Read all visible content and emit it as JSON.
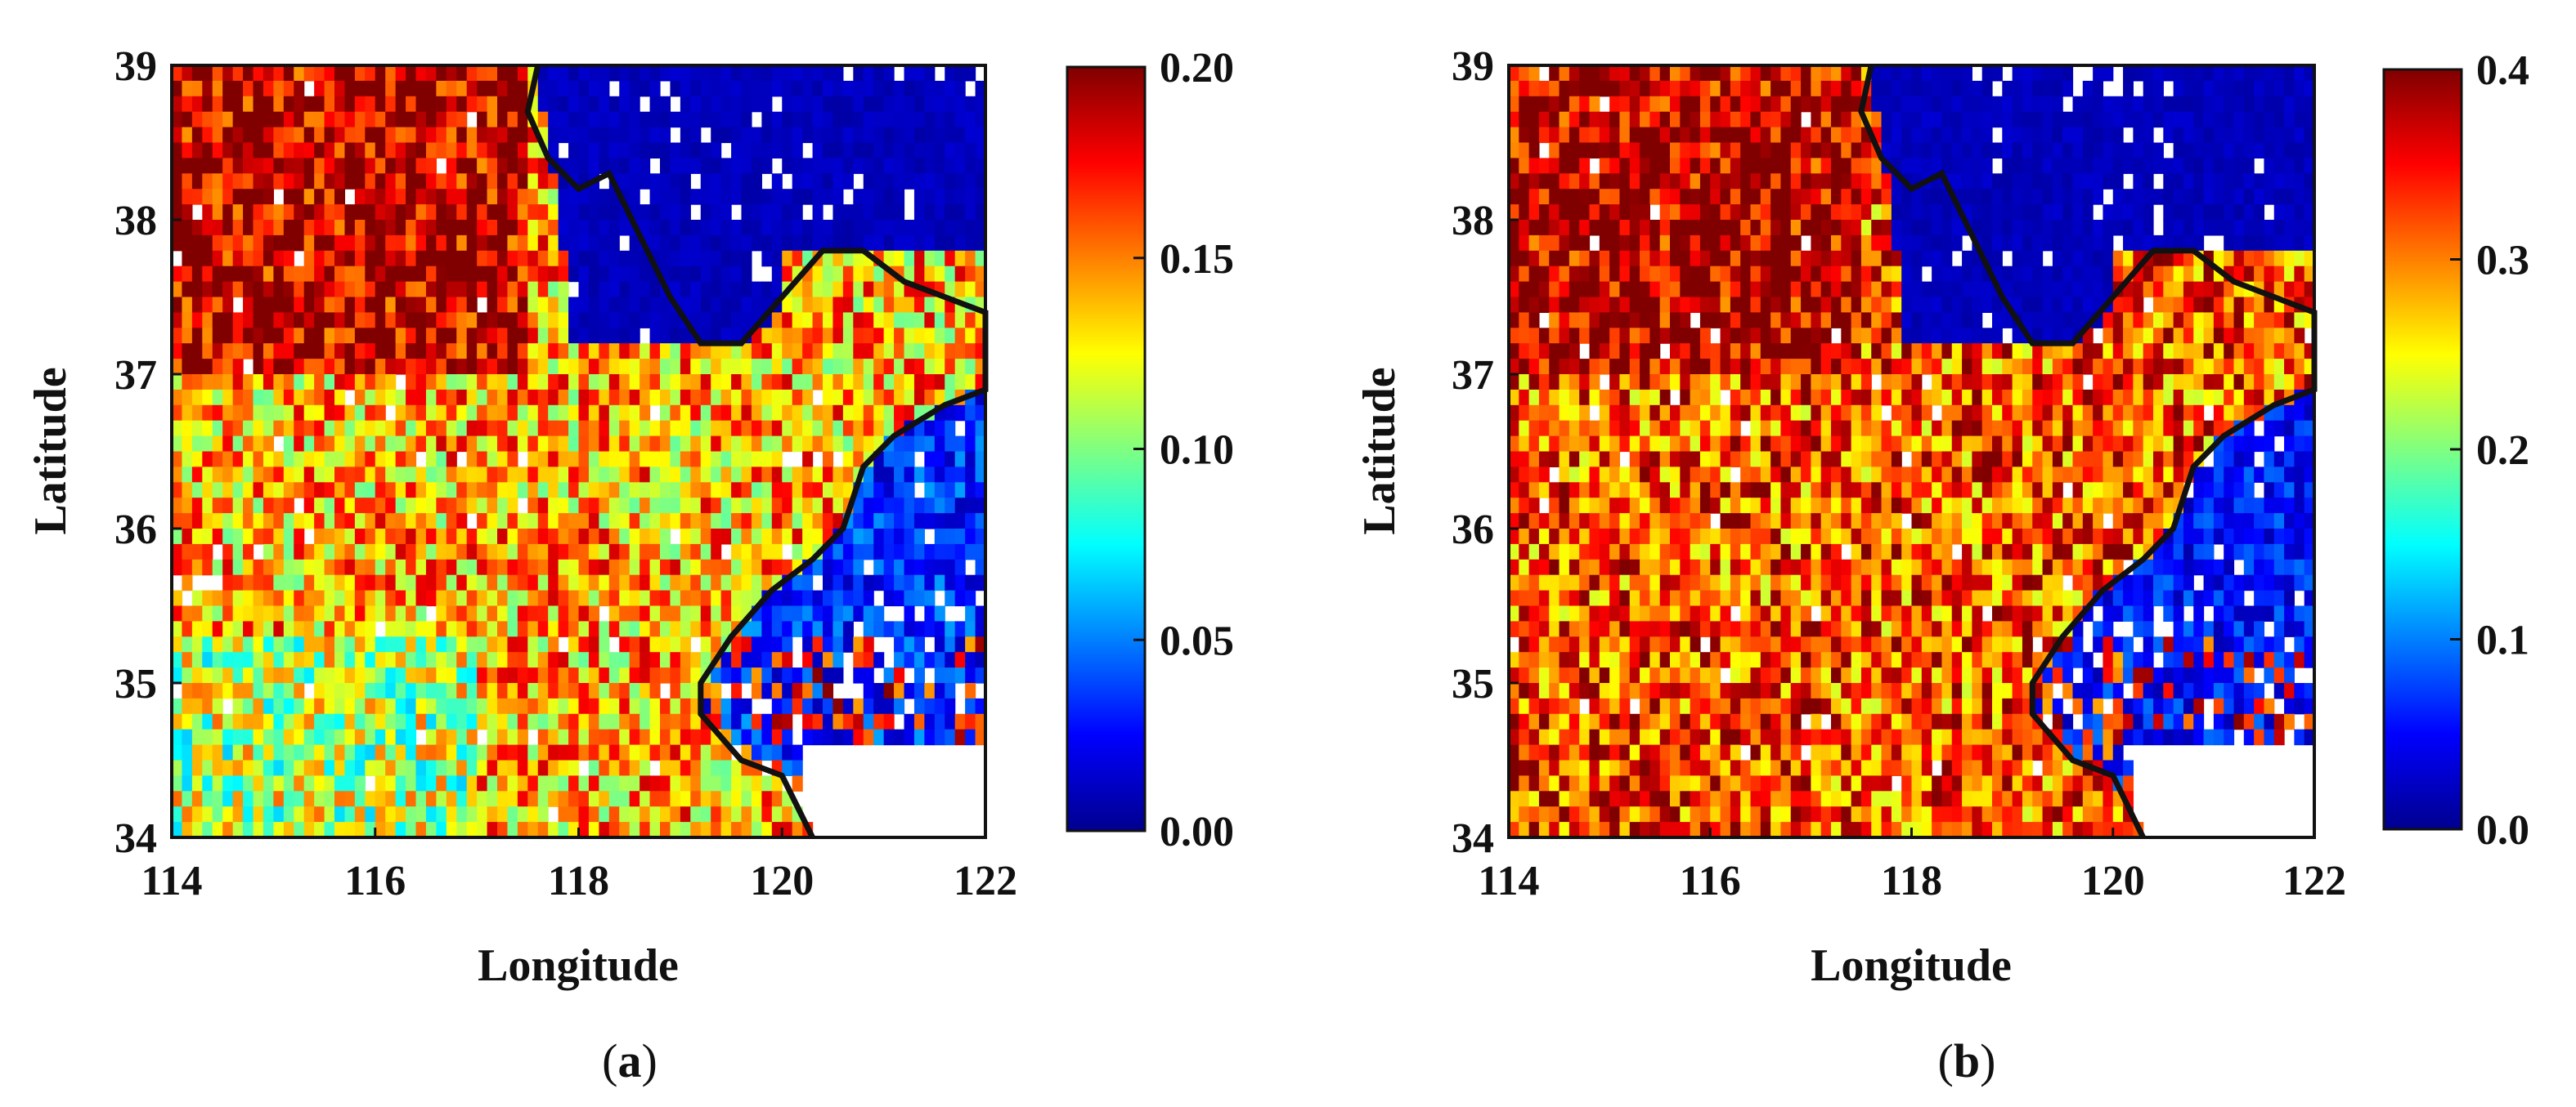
{
  "chart_data": [
    {
      "type": "heatmap",
      "panel_label": "a",
      "xlabel": "Longitude",
      "ylabel": "Latitude",
      "xlim": [
        114,
        122
      ],
      "ylim": [
        34,
        39
      ],
      "xticks": [
        "114",
        "116",
        "118",
        "120",
        "122"
      ],
      "yticks": [
        "34",
        "35",
        "36",
        "37",
        "38",
        "39"
      ],
      "colorbar": {
        "min": 0.0,
        "max": 0.2,
        "ticks": [
          "0.00",
          "0.05",
          "0.10",
          "0.15",
          "0.20"
        ],
        "colormap": "jet"
      },
      "coastline": [
        [
          117.6,
          39.0
        ],
        [
          117.5,
          38.7
        ],
        [
          117.7,
          38.4
        ],
        [
          118.0,
          38.2
        ],
        [
          118.3,
          38.3
        ],
        [
          118.6,
          37.9
        ],
        [
          118.9,
          37.5
        ],
        [
          119.2,
          37.2
        ],
        [
          119.6,
          37.2
        ],
        [
          120.0,
          37.5
        ],
        [
          120.4,
          37.8
        ],
        [
          120.8,
          37.8
        ],
        [
          121.2,
          37.6
        ],
        [
          121.6,
          37.5
        ],
        [
          122.0,
          37.4
        ],
        [
          122.0,
          36.9
        ],
        [
          121.6,
          36.8
        ],
        [
          121.1,
          36.6
        ],
        [
          120.8,
          36.4
        ],
        [
          120.6,
          36.0
        ],
        [
          120.3,
          35.8
        ],
        [
          119.9,
          35.6
        ],
        [
          119.5,
          35.3
        ],
        [
          119.2,
          35.0
        ],
        [
          119.2,
          34.8
        ],
        [
          119.6,
          34.5
        ],
        [
          120.0,
          34.4
        ],
        [
          120.3,
          34.0
        ]
      ],
      "regional_means": {
        "northwest_land": 0.19,
        "central_land": 0.14,
        "southwest_land": 0.11,
        "bohai_sea": 0.01,
        "yellow_sea": 0.03
      }
    },
    {
      "type": "heatmap",
      "panel_label": "b",
      "xlabel": "Longitude",
      "ylabel": "Latitude",
      "xlim": [
        114,
        122
      ],
      "ylim": [
        34,
        39
      ],
      "xticks": [
        "114",
        "116",
        "118",
        "120",
        "122"
      ],
      "yticks": [
        "34",
        "35",
        "36",
        "37",
        "38",
        "39"
      ],
      "colorbar": {
        "min": 0.0,
        "max": 0.4,
        "ticks": [
          "0.0",
          "0.1",
          "0.2",
          "0.3",
          "0.4"
        ],
        "colormap": "jet"
      },
      "coastline": [
        [
          117.6,
          39.0
        ],
        [
          117.5,
          38.7
        ],
        [
          117.7,
          38.4
        ],
        [
          118.0,
          38.2
        ],
        [
          118.3,
          38.3
        ],
        [
          118.6,
          37.9
        ],
        [
          118.9,
          37.5
        ],
        [
          119.2,
          37.2
        ],
        [
          119.6,
          37.2
        ],
        [
          120.0,
          37.5
        ],
        [
          120.4,
          37.8
        ],
        [
          120.8,
          37.8
        ],
        [
          121.2,
          37.6
        ],
        [
          121.6,
          37.5
        ],
        [
          122.0,
          37.4
        ],
        [
          122.0,
          36.9
        ],
        [
          121.6,
          36.8
        ],
        [
          121.1,
          36.6
        ],
        [
          120.8,
          36.4
        ],
        [
          120.6,
          36.0
        ],
        [
          120.3,
          35.8
        ],
        [
          119.9,
          35.6
        ],
        [
          119.5,
          35.3
        ],
        [
          119.2,
          35.0
        ],
        [
          119.2,
          34.8
        ],
        [
          119.6,
          34.5
        ],
        [
          120.0,
          34.4
        ],
        [
          120.3,
          34.0
        ]
      ],
      "regional_means": {
        "northwest_land": 0.38,
        "central_land": 0.32,
        "southwest_land": 0.33,
        "bohai_sea": 0.02,
        "yellow_sea": 0.05
      }
    }
  ]
}
